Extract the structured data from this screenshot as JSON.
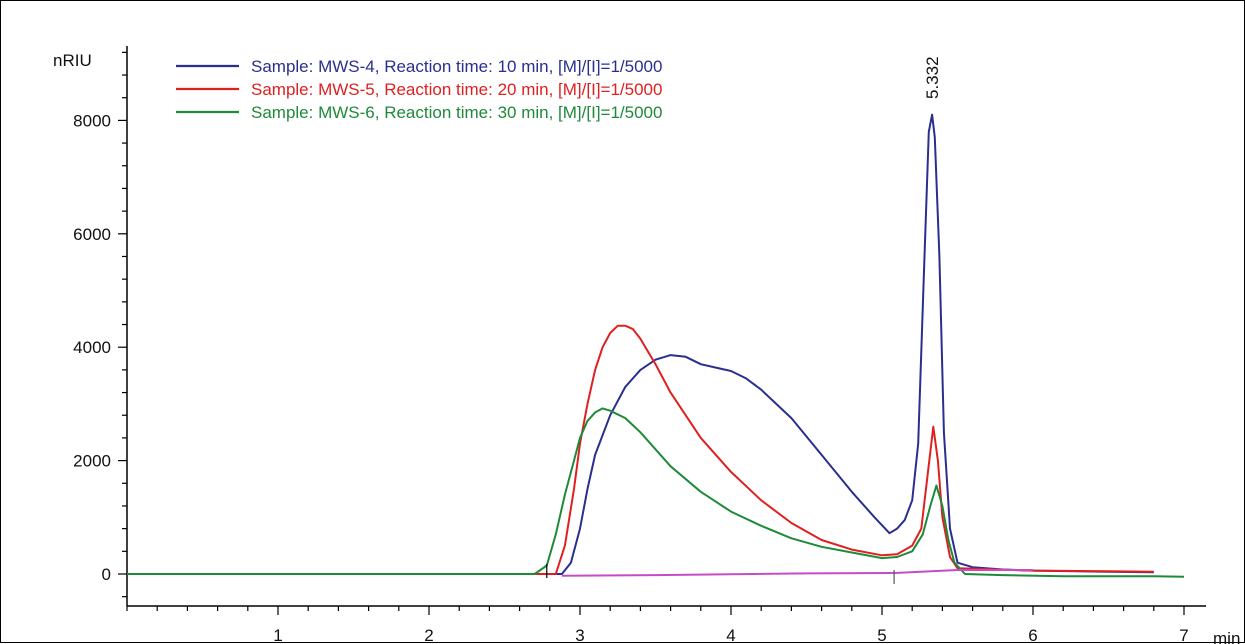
{
  "chart_data": {
    "type": "line",
    "title": "",
    "ylabel": "nRIU",
    "xlabel": "min",
    "xlim": [
      0,
      7.3
    ],
    "ylim": [
      -550,
      9400
    ],
    "x_ticks": [
      "1",
      "2",
      "3",
      "4",
      "5",
      "6",
      "7"
    ],
    "y_ticks": [
      "0",
      "2000",
      "4000",
      "6000",
      "8000"
    ],
    "peak_annotation": {
      "x": 5.332,
      "label": "5.332"
    },
    "legend_position": "top-left",
    "series": [
      {
        "name": "Sample: MWS-4, Reaction time: 10 min, [M]/[I]=1/5000",
        "color": "#2a2f8f",
        "points": [
          [
            0,
            0
          ],
          [
            2.8,
            0
          ],
          [
            2.88,
            0
          ],
          [
            2.94,
            200
          ],
          [
            3.0,
            800
          ],
          [
            3.05,
            1500
          ],
          [
            3.1,
            2100
          ],
          [
            3.2,
            2800
          ],
          [
            3.3,
            3300
          ],
          [
            3.4,
            3600
          ],
          [
            3.5,
            3780
          ],
          [
            3.6,
            3860
          ],
          [
            3.7,
            3830
          ],
          [
            3.8,
            3700
          ],
          [
            3.9,
            3640
          ],
          [
            4.0,
            3580
          ],
          [
            4.1,
            3450
          ],
          [
            4.2,
            3250
          ],
          [
            4.4,
            2750
          ],
          [
            4.6,
            2100
          ],
          [
            4.8,
            1450
          ],
          [
            4.95,
            1000
          ],
          [
            5.05,
            720
          ],
          [
            5.1,
            800
          ],
          [
            5.15,
            950
          ],
          [
            5.2,
            1300
          ],
          [
            5.24,
            2300
          ],
          [
            5.28,
            5500
          ],
          [
            5.31,
            7800
          ],
          [
            5.332,
            8100
          ],
          [
            5.35,
            7700
          ],
          [
            5.38,
            5600
          ],
          [
            5.41,
            2500
          ],
          [
            5.45,
            800
          ],
          [
            5.5,
            200
          ],
          [
            5.6,
            120
          ],
          [
            5.8,
            80
          ],
          [
            6.0,
            60
          ],
          [
            6.5,
            40
          ],
          [
            6.8,
            30
          ]
        ]
      },
      {
        "name": "Sample: MWS-5, Reaction time: 20 min, [M]/[I]=1/5000",
        "color": "#e02020",
        "points": [
          [
            0,
            0
          ],
          [
            2.8,
            0
          ],
          [
            2.84,
            0
          ],
          [
            2.9,
            500
          ],
          [
            2.96,
            1500
          ],
          [
            3.0,
            2300
          ],
          [
            3.05,
            3000
          ],
          [
            3.1,
            3600
          ],
          [
            3.15,
            4000
          ],
          [
            3.2,
            4250
          ],
          [
            3.25,
            4380
          ],
          [
            3.3,
            4380
          ],
          [
            3.35,
            4320
          ],
          [
            3.4,
            4150
          ],
          [
            3.5,
            3700
          ],
          [
            3.6,
            3200
          ],
          [
            3.8,
            2400
          ],
          [
            4.0,
            1800
          ],
          [
            4.2,
            1300
          ],
          [
            4.4,
            900
          ],
          [
            4.6,
            600
          ],
          [
            4.8,
            430
          ],
          [
            5.0,
            330
          ],
          [
            5.1,
            350
          ],
          [
            5.2,
            500
          ],
          [
            5.26,
            800
          ],
          [
            5.3,
            1700
          ],
          [
            5.34,
            2600
          ],
          [
            5.37,
            2000
          ],
          [
            5.4,
            1000
          ],
          [
            5.45,
            300
          ],
          [
            5.5,
            100
          ],
          [
            6.0,
            60
          ],
          [
            6.5,
            50
          ],
          [
            6.8,
            40
          ]
        ]
      },
      {
        "name": "Sample: MWS-6, Reaction time: 30 min, [M]/[I]=1/5000",
        "color": "#1e8a3a",
        "points": [
          [
            0,
            0
          ],
          [
            2.2,
            0
          ],
          [
            2.7,
            0
          ],
          [
            2.78,
            150
          ],
          [
            2.84,
            700
          ],
          [
            2.9,
            1400
          ],
          [
            2.96,
            2000
          ],
          [
            3.0,
            2400
          ],
          [
            3.05,
            2700
          ],
          [
            3.1,
            2850
          ],
          [
            3.15,
            2920
          ],
          [
            3.2,
            2880
          ],
          [
            3.3,
            2750
          ],
          [
            3.4,
            2500
          ],
          [
            3.5,
            2200
          ],
          [
            3.6,
            1900
          ],
          [
            3.8,
            1450
          ],
          [
            4.0,
            1100
          ],
          [
            4.2,
            850
          ],
          [
            4.4,
            630
          ],
          [
            4.6,
            480
          ],
          [
            4.8,
            380
          ],
          [
            5.0,
            280
          ],
          [
            5.1,
            300
          ],
          [
            5.2,
            400
          ],
          [
            5.27,
            700
          ],
          [
            5.32,
            1200
          ],
          [
            5.36,
            1560
          ],
          [
            5.4,
            1200
          ],
          [
            5.44,
            600
          ],
          [
            5.48,
            200
          ],
          [
            5.55,
            0
          ],
          [
            5.8,
            -20
          ],
          [
            6.2,
            -40
          ],
          [
            6.8,
            -40
          ],
          [
            7.0,
            -50
          ]
        ]
      },
      {
        "name": "",
        "color": "#c64bc6",
        "points": [
          [
            2.88,
            -30
          ],
          [
            3.5,
            -20
          ],
          [
            4.5,
            10
          ],
          [
            5.1,
            20
          ],
          [
            5.5,
            70
          ],
          [
            6.0,
            70
          ]
        ]
      }
    ]
  }
}
